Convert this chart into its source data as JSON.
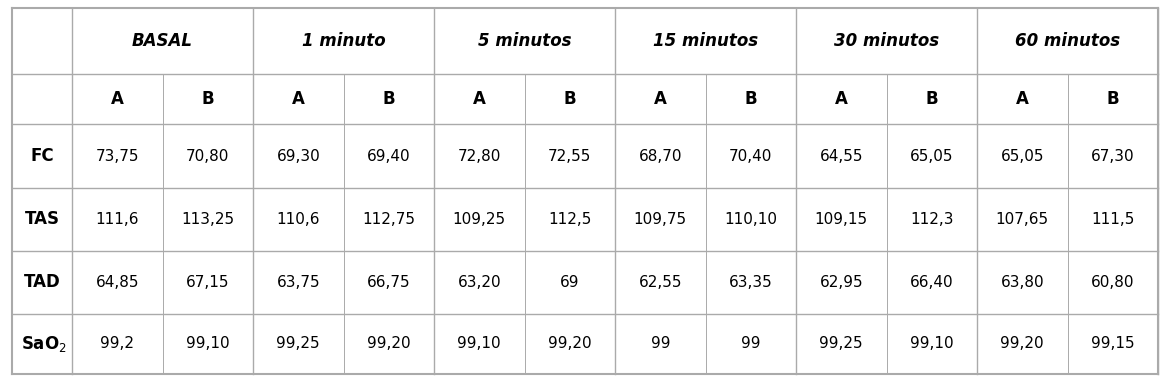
{
  "time_headers": [
    "BASAL",
    "1 minuto",
    "5 minutos",
    "15 minutos",
    "30 minutos",
    "60 minutos"
  ],
  "ab_headers": [
    "A",
    "B",
    "A",
    "B",
    "A",
    "B",
    "A",
    "B",
    "A",
    "B",
    "A",
    "B"
  ],
  "row_labels": [
    "FC",
    "TAS",
    "TAD",
    "SaO₂"
  ],
  "data": [
    [
      "73,75",
      "70,80",
      "69,30",
      "69,40",
      "72,80",
      "72,55",
      "68,70",
      "70,40",
      "64,55",
      "65,05",
      "65,05",
      "67,30"
    ],
    [
      "111,6",
      "113,25",
      "110,6",
      "112,75",
      "109,25",
      "112,5",
      "109,75",
      "110,10",
      "109,15",
      "112,3",
      "107,65",
      "111,5"
    ],
    [
      "64,85",
      "67,15",
      "63,75",
      "66,75",
      "63,20",
      "69",
      "62,55",
      "63,35",
      "62,95",
      "66,40",
      "63,80",
      "60,80"
    ],
    [
      "99,2",
      "99,10",
      "99,25",
      "99,20",
      "99,10",
      "99,20",
      "99",
      "99",
      "99,25",
      "99,10",
      "99,20",
      "99,15"
    ]
  ],
  "background_color": "#ffffff",
  "line_color": "#aaaaaa",
  "text_color": "#000000",
  "header_fontsize": 12,
  "subheader_fontsize": 12,
  "row_label_fontsize": 12,
  "data_fontsize": 11
}
